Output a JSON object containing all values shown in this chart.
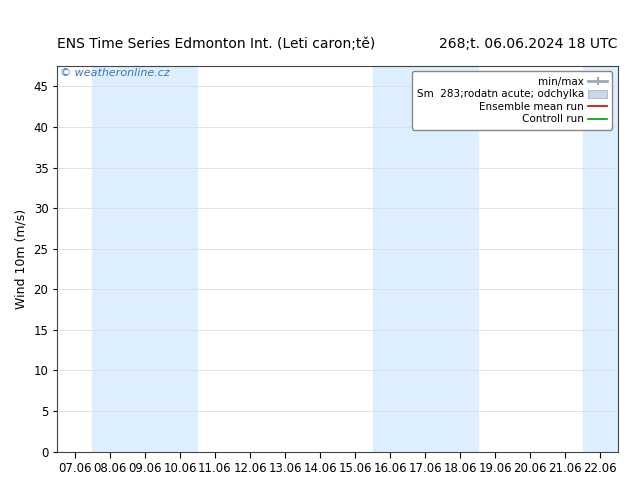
{
  "title_left": "ENS Time Series Edmonton Int. (Leti caron;tě)",
  "title_right": "268;t. 06.06.2024 18 UTC",
  "ylabel": "Wind 10m (m/s)",
  "ylim": [
    0,
    47.5
  ],
  "yticks": [
    0,
    5,
    10,
    15,
    20,
    25,
    30,
    35,
    40,
    45
  ],
  "x_labels": [
    "07.06",
    "08.06",
    "09.06",
    "10.06",
    "11.06",
    "12.06",
    "13.06",
    "14.06",
    "15.06",
    "16.06",
    "17.06",
    "18.06",
    "19.06",
    "20.06",
    "21.06",
    "22.06"
  ],
  "shaded_bands": [
    [
      1,
      3
    ],
    [
      9,
      11
    ],
    [
      15
    ]
  ],
  "band_color": "#ddeeff",
  "bg_color": "#ffffff",
  "plot_bg_color": "#ffffff",
  "watermark": "© weatheronline.cz",
  "watermark_color": "#3377bb",
  "title_fontsize": 10,
  "axis_fontsize": 9,
  "tick_fontsize": 8.5,
  "legend_labels": [
    "min/max",
    "Sm  283;rodatn acute; odchylka",
    "Ensemble mean run",
    "Controll run"
  ],
  "legend_colors": [
    "#aabbcc",
    "#bbccdd",
    "#cc0000",
    "#009900"
  ]
}
